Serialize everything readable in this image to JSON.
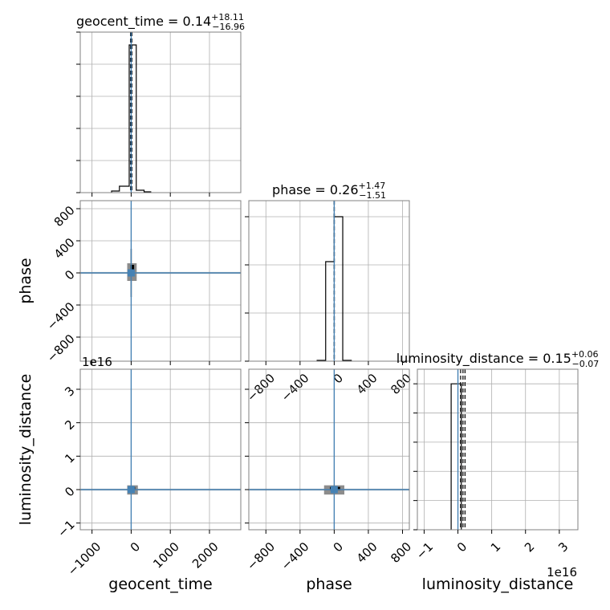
{
  "colors": {
    "hist": "#000000",
    "truth": "#4682b4",
    "grid": "#b0b0b0",
    "frame": "#808080",
    "density_dark": "#000000",
    "density_mid": "#7f7f7f"
  },
  "chart_data": {
    "type": "corner",
    "parameters": [
      "geocent_time",
      "phase",
      "luminosity_distance"
    ],
    "offset_label": "1e16",
    "grid": true,
    "panels": [
      {
        "id": "geocent_time-hist",
        "type": "histogram",
        "row": 0,
        "col": 0,
        "title": {
          "param": "geocent_time",
          "median": "0.14",
          "plus": "+18.11",
          "minus": "−16.96"
        },
        "xlim": [
          -1300,
          2800
        ],
        "ylim": [
          0,
          1
        ],
        "x_ticks": [
          -1000,
          0,
          1000,
          2000
        ],
        "y_ticks": [
          0,
          0.2,
          0.4,
          0.6,
          0.8,
          1.0
        ],
        "bins": [
          {
            "x0": -500,
            "x1": -300,
            "y": 0.01
          },
          {
            "x0": -300,
            "x1": -50,
            "y": 0.04
          },
          {
            "x0": -50,
            "x1": 0,
            "y": 0.92
          },
          {
            "x0": 0,
            "x1": 130,
            "y": 0.92
          },
          {
            "x0": 130,
            "x1": 330,
            "y": 0.015
          },
          {
            "x0": 330,
            "x1": 500,
            "y": 0.005
          }
        ],
        "quantiles": [
          -16.96,
          0.14,
          18.11
        ],
        "truth": 0
      },
      {
        "id": "phase-hist",
        "type": "histogram",
        "row": 1,
        "col": 1,
        "title": {
          "param": "phase",
          "median": "0.26",
          "plus": "+1.47",
          "minus": "−1.51"
        },
        "xlim": [
          -1000,
          880
        ],
        "ylim": [
          0,
          1
        ],
        "x_ticks": [
          -800,
          -400,
          0,
          400,
          800
        ],
        "x_tick_labels": [
          "−800",
          "−400",
          "0",
          "400",
          "800"
        ],
        "y_ticks": [
          0,
          0.3,
          0.6,
          0.9
        ],
        "bins": [
          {
            "x0": -200,
            "x1": -100,
            "y": 0.005
          },
          {
            "x0": -100,
            "x1": 0,
            "y": 0.62
          },
          {
            "x0": 0,
            "x1": 100,
            "y": 0.9
          },
          {
            "x0": 100,
            "x1": 200,
            "y": 0.005
          }
        ],
        "quantiles": [
          -1.51,
          0.26,
          1.47
        ],
        "truth": 0
      },
      {
        "id": "luminosity_distance-hist",
        "type": "histogram",
        "row": 2,
        "col": 2,
        "title": {
          "param": "luminosity_distance",
          "median": "0.15",
          "plus": "+0.06",
          "minus": "−0.07"
        },
        "xlim": [
          -1.2,
          3.55
        ],
        "ylim": [
          0,
          1.1
        ],
        "x_ticks": [
          -1,
          0,
          1,
          2,
          3
        ],
        "x_tick_labels": [
          "−1",
          "0",
          "1",
          "2",
          "3"
        ],
        "y_ticks": [
          0,
          0.2,
          0.4,
          0.6,
          0.8,
          1.0
        ],
        "bins": [
          {
            "x0": -0.2,
            "x1": 0,
            "y": 1.0
          },
          {
            "x0": 0,
            "x1": 0.1,
            "y": 1.0
          }
        ],
        "quantiles": [
          -0.07,
          0.15,
          0.06
        ],
        "truth": 0
      },
      {
        "id": "phase-vs-geocent_time",
        "type": "2d",
        "row": 1,
        "col": 0,
        "xlim": [
          -1300,
          2800
        ],
        "ylim": [
          -1100,
          900
        ],
        "x_ticks": [
          -1000,
          0,
          1000,
          2000
        ],
        "y_ticks": [
          -800,
          -400,
          0,
          400,
          800
        ],
        "y_tick_labels": [
          "−800",
          "−400",
          "0",
          "400",
          "800"
        ],
        "ylabel": "phase",
        "truth": [
          0,
          0
        ],
        "density": {
          "center": [
            0,
            0
          ],
          "x_extent": [
            -60,
            100
          ],
          "y_extent": [
            -80,
            100
          ],
          "x_tail": [
            -1300,
            2800
          ],
          "y_tail": [
            -300,
            300
          ]
        }
      },
      {
        "id": "luminosity_distance-vs-geocent_time",
        "type": "2d",
        "row": 2,
        "col": 0,
        "xlim": [
          -1300,
          2800
        ],
        "ylim": [
          -1.2,
          3.6
        ],
        "x_ticks": [
          -1000,
          0,
          1000,
          2000
        ],
        "x_tick_labels": [
          "−1000",
          "0",
          "1000",
          "2000"
        ],
        "y_ticks": [
          -1,
          0,
          1,
          2,
          3
        ],
        "y_tick_labels": [
          "−1",
          "0",
          "1",
          "2",
          "3"
        ],
        "xlabel": "geocent_time",
        "ylabel": "luminosity_distance",
        "truth": [
          0,
          0
        ],
        "density": {
          "center": [
            0,
            0
          ],
          "x_extent": [
            -60,
            130
          ],
          "y_extent": [
            -0.1,
            0.08
          ],
          "x_tail": [
            -1300,
            2800
          ],
          "y_tail": [
            -0.06,
            0.06
          ]
        }
      },
      {
        "id": "luminosity_distance-vs-phase",
        "type": "2d",
        "row": 2,
        "col": 1,
        "xlim": [
          -1000,
          880
        ],
        "ylim": [
          -1.2,
          3.6
        ],
        "x_ticks": [
          -800,
          -400,
          0,
          400,
          800
        ],
        "x_tick_labels": [
          "−800",
          "−400",
          "0",
          "400",
          "800"
        ],
        "y_ticks": [
          -1,
          0,
          1,
          2,
          3
        ],
        "xlabel": "phase",
        "truth": [
          0,
          0
        ],
        "density": {
          "center": [
            0,
            0
          ],
          "x_extent": [
            -100,
            100
          ],
          "y_extent": [
            -0.1,
            0.08
          ],
          "x_tail": [
            -1000,
            880
          ],
          "y_tail": [
            -0.05,
            0.05
          ]
        }
      }
    ],
    "extra_xlabel": {
      "col": 2,
      "text": "luminosity_distance"
    }
  }
}
